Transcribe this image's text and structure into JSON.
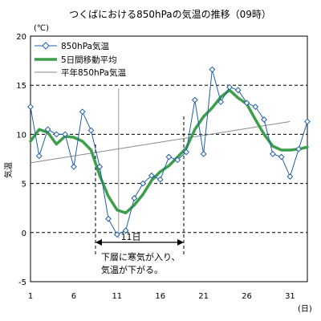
{
  "chart_data": {
    "type": "line",
    "title": "つくばにおける850hPaの気温の推移（09時）",
    "ylabel": "気温",
    "yunit": "(℃)",
    "xunit": "(日)",
    "xlim": [
      1,
      33
    ],
    "ylim": [
      -5,
      20
    ],
    "xticks": [
      1,
      6,
      11,
      16,
      21,
      26,
      31
    ],
    "yticks": [
      -5,
      0,
      5,
      10,
      15,
      20
    ],
    "grid": "horizontal dashed",
    "legend": "top-left",
    "series": [
      {
        "name": "850hPa気温",
        "color": "#1f5fa8",
        "marker": "diamond",
        "x": [
          1,
          2,
          3,
          4,
          5,
          6,
          7,
          8,
          9,
          10,
          11,
          12,
          13,
          14,
          15,
          16,
          17,
          18,
          19,
          20,
          21,
          22,
          23,
          24,
          25,
          26,
          27,
          28,
          29,
          30,
          31,
          32,
          33
        ],
        "values": [
          12.8,
          7.8,
          10.5,
          10.0,
          10.0,
          6.7,
          12.3,
          10.4,
          6.7,
          1.4,
          -0.2,
          0.2,
          3.5,
          5.0,
          5.8,
          5.4,
          7.7,
          7.4,
          8.2,
          13.5,
          8.0,
          16.6,
          13.3,
          14.8,
          14.5,
          13.2,
          12.8,
          11.5,
          8.0,
          7.7,
          5.7,
          8.5,
          11.3
        ]
      },
      {
        "name": "5日間移動平均",
        "color": "#3c9e4a",
        "x": [
          1,
          2,
          3,
          4,
          5,
          6,
          7,
          8,
          9,
          10,
          11,
          12,
          13,
          14,
          15,
          16,
          17,
          18,
          19,
          20,
          21,
          22,
          23,
          24,
          25,
          26,
          27,
          28,
          29,
          30,
          31,
          32,
          33
        ],
        "values": [
          9.3,
          10.5,
          10.2,
          9.0,
          9.8,
          9.7,
          9.3,
          8.4,
          5.8,
          3.7,
          2.3,
          2.0,
          2.8,
          3.9,
          5.3,
          6.2,
          6.8,
          7.7,
          8.6,
          10.5,
          11.8,
          12.7,
          13.8,
          14.5,
          13.7,
          13.1,
          11.5,
          10.0,
          8.8,
          8.4,
          8.4,
          8.5,
          8.7
        ]
      },
      {
        "name": "平年850hPa気温",
        "color": "#8a8a8a",
        "x": [
          1,
          31
        ],
        "values": [
          7.1,
          11.3
        ]
      }
    ],
    "annotations": [
      {
        "text": "11日",
        "x_from": 8,
        "x_to": 19,
        "y": -0.9
      },
      {
        "text": "下層に寒気が入り、",
        "line": 1
      },
      {
        "text": "気温が下がる。",
        "line": 2
      }
    ]
  }
}
